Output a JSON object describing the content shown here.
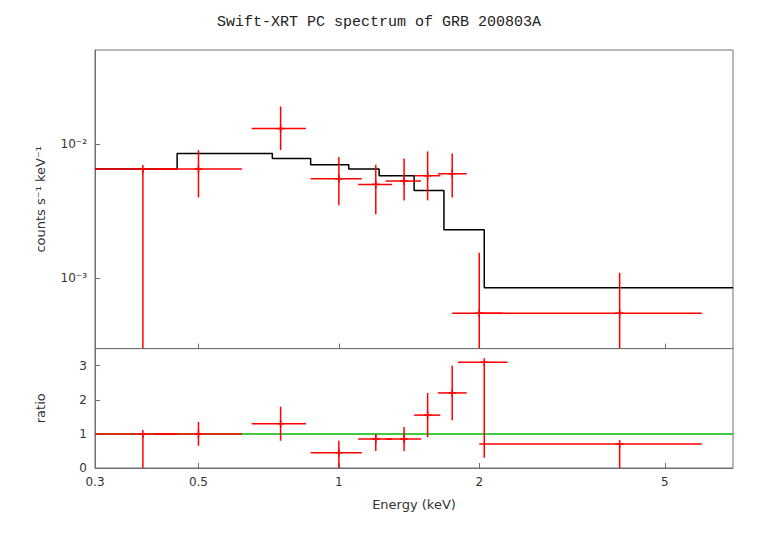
{
  "chart_data": [
    {
      "type": "step",
      "title": "Swift-XRT PC spectrum of GRB 200803A",
      "ylabel": "counts s⁻¹ keV⁻¹",
      "log": true,
      "xlim": [
        0.3,
        7.0
      ],
      "ylim": [
        0.0003,
        0.05
      ],
      "xticks": [
        0.3,
        0.5,
        1,
        2,
        5
      ],
      "yticks": [
        {
          "value": 0.001,
          "label": "10⁻³"
        },
        {
          "value": 0.01,
          "label": "10⁻²"
        }
      ],
      "tick_labels": "y",
      "grid": false,
      "series": [
        {
          "type": "step",
          "color": "#000000",
          "x": [
            0.3,
            0.45,
            0.45,
            0.72,
            0.72,
            0.87,
            0.87,
            1.05,
            1.05,
            1.22,
            1.22,
            1.45,
            1.45,
            1.68,
            1.68,
            2.05,
            2.05,
            7.0
          ],
          "values": [
            0.0065,
            0.0065,
            0.0085,
            0.0085,
            0.0078,
            0.0078,
            0.007,
            0.007,
            0.0065,
            0.0065,
            0.0058,
            0.0058,
            0.0045,
            0.0045,
            0.0023,
            0.0023,
            0.00085,
            0.00085
          ]
        },
        {
          "type": "errorbar",
          "marker": "plus",
          "color": "#ff0000",
          "x": [
            0.38,
            0.5,
            0.75,
            1.0,
            1.2,
            1.38,
            1.55,
            1.75,
            2.0,
            4.0
          ],
          "values": [
            0.0065,
            0.0065,
            0.013,
            0.0055,
            0.005,
            0.0053,
            0.0058,
            0.006,
            0.00055,
            0.00055
          ],
          "xerr_lo": [
            0.08,
            0.1,
            0.1,
            0.13,
            0.1,
            0.12,
            0.1,
            0.12,
            0.25,
            2.0
          ],
          "xerr_hi": [
            0.07,
            0.12,
            0.1,
            0.12,
            0.1,
            0.12,
            0.1,
            0.13,
            0.25,
            2.0
          ],
          "yerr_lo": [
            0.0065,
            0.0025,
            0.004,
            0.002,
            0.002,
            0.0015,
            0.002,
            0.002,
            0.00055,
            0.00055
          ],
          "yerr_hi": [
            0.0,
            0.0025,
            0.006,
            0.0025,
            0.002,
            0.0025,
            0.003,
            0.0025,
            0.001,
            0.00055
          ]
        }
      ]
    },
    {
      "type": "errorbar",
      "xlabel": "Energy (keV)",
      "ylabel": "ratio",
      "log": "x",
      "xlim": [
        0.3,
        7.0
      ],
      "ylim": [
        0,
        3.5
      ],
      "xticks": [
        0.3,
        0.5,
        1,
        2,
        5
      ],
      "yticks": [
        0,
        1,
        2,
        3
      ],
      "grid": false,
      "series": [
        {
          "type": "hline",
          "color": "#00bb00",
          "values": [
            1.0
          ]
        },
        {
          "type": "errorbar",
          "marker": "plus",
          "color": "#ff0000",
          "x": [
            0.38,
            0.5,
            0.75,
            1.0,
            1.2,
            1.38,
            1.55,
            1.75,
            2.05,
            4.0
          ],
          "values": [
            1.0,
            1.0,
            1.3,
            0.45,
            0.85,
            0.85,
            1.55,
            2.2,
            3.1,
            0.7
          ],
          "xerr_lo": [
            0.08,
            0.1,
            0.1,
            0.13,
            0.1,
            0.12,
            0.1,
            0.12,
            0.25,
            2.0
          ],
          "xerr_hi": [
            0.07,
            0.12,
            0.1,
            0.12,
            0.1,
            0.12,
            0.1,
            0.13,
            0.25,
            2.0
          ],
          "yerr_lo": [
            1.0,
            0.35,
            0.5,
            0.45,
            0.35,
            0.35,
            0.65,
            0.8,
            2.8,
            0.7
          ],
          "yerr_hi": [
            0.0,
            0.35,
            0.5,
            0.35,
            0.15,
            0.35,
            0.65,
            0.8,
            0.0,
            0.0
          ]
        }
      ]
    }
  ]
}
